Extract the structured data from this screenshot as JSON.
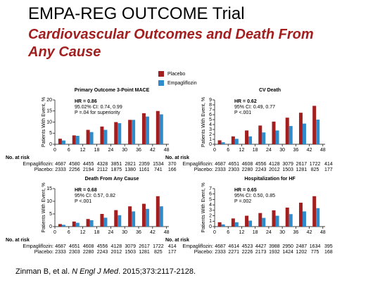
{
  "header": {
    "title": "EMPA-REG OUTCOME Trial",
    "subtitle": "Cardiovascular Outcomes and Death From Any Cause"
  },
  "legend": [
    {
      "name": "Placebo",
      "color": "#a31f1f"
    },
    {
      "name": "Empagliflozin",
      "color": "#2e8bcc"
    }
  ],
  "chart_data": [
    {
      "type": "bar",
      "title": "Primary Outcome 3-Point MACE",
      "y_label": "Patients With Event, %",
      "annotations": [
        "HR = 0.86",
        "95.02% CI: 0.74, 0.99",
        "P =.04 for superiority"
      ],
      "x": [
        3,
        9,
        15,
        21,
        27,
        33,
        39,
        45
      ],
      "xlim": [
        0,
        49
      ],
      "xticks": [
        0,
        6,
        12,
        18,
        24,
        30,
        36,
        42,
        48
      ],
      "ylim": [
        0,
        20
      ],
      "yticks": [
        0,
        5,
        10,
        15,
        20
      ],
      "series": [
        {
          "values": [
            2.5,
            4,
            6.5,
            8,
            10,
            11,
            14,
            15
          ]
        },
        {
          "values": [
            1.7,
            3.8,
            5.5,
            6.5,
            9.5,
            11,
            12.5,
            13.5
          ]
        }
      ],
      "at_risk": {
        "label": "No. at risk",
        "rows": [
          {
            "name": "Empagliflozin:",
            "values": [
              4687,
              4580,
              4455,
              4328,
              3851,
              2821,
              2359,
              1534,
              370
            ]
          },
          {
            "name": "Placebo:",
            "values": [
              2333,
              2256,
              2194,
              2112,
              1875,
              1380,
              1161,
              741,
              166
            ]
          }
        ]
      }
    },
    {
      "type": "bar",
      "title": "CV Death",
      "y_label": "Patients With Event, %",
      "annotations": [
        "HR = 0.62",
        "95% CI: 0.49, 0.77",
        "P <.001"
      ],
      "x": [
        3,
        9,
        15,
        21,
        27,
        33,
        39,
        45
      ],
      "xlim": [
        0,
        49
      ],
      "xticks": [
        0,
        6,
        12,
        18,
        24,
        30,
        36,
        42,
        48
      ],
      "ylim": [
        0,
        9
      ],
      "yticks": [
        0,
        1,
        2,
        3,
        4,
        5,
        6,
        7,
        8,
        9
      ],
      "series": [
        {
          "values": [
            0.8,
            1.6,
            2.8,
            3.8,
            4.6,
            5.4,
            6.4,
            7.8
          ]
        },
        {
          "values": [
            0.4,
            1.1,
            1.6,
            2.4,
            2.8,
            3.7,
            4.2,
            5
          ]
        }
      ],
      "at_risk": {
        "label": "No. at risk",
        "rows": [
          {
            "name": "Empagliflozin:",
            "values": [
              4687,
              4651,
              4608,
              4556,
              4128,
              3079,
              2617,
              1722,
              414
            ]
          },
          {
            "name": "Placebo:",
            "values": [
              2333,
              2303,
              2280,
              2243,
              2012,
              1503,
              1281,
              825,
              177
            ]
          }
        ]
      }
    },
    {
      "type": "bar",
      "title": "Death From Any Cause",
      "y_label": "Patients With Event, %",
      "annotations": [
        "HR = 0.68",
        "95% CI: 0.57, 0.82",
        "P <.001"
      ],
      "x": [
        3,
        9,
        15,
        21,
        27,
        33,
        39,
        45
      ],
      "xlim": [
        0,
        49
      ],
      "xticks": [
        0,
        6,
        12,
        18,
        24,
        30,
        36,
        42,
        48
      ],
      "ylim": [
        0,
        15
      ],
      "yticks": [
        0,
        5,
        10,
        15
      ],
      "series": [
        {
          "values": [
            1,
            2,
            3,
            5,
            6.5,
            8,
            9,
            12
          ]
        },
        {
          "values": [
            0.7,
            1.5,
            2.5,
            3.5,
            4.5,
            6,
            7,
            8
          ]
        }
      ],
      "at_risk": {
        "label": "No. at risk",
        "rows": [
          {
            "name": "Empagliflozin:",
            "values": [
              4687,
              4651,
              4608,
              4556,
              4128,
              3079,
              2617,
              1722,
              414
            ]
          },
          {
            "name": "Placebo:",
            "values": [
              2333,
              2303,
              2280,
              2243,
              2012,
              1503,
              1281,
              825,
              177
            ]
          }
        ]
      }
    },
    {
      "type": "bar",
      "title": "Hospitalization for HF",
      "y_label": "Patients With Event, %",
      "annotations": [
        "HR = 0.65",
        "95% CI: 0.50, 0.85",
        "P =.002"
      ],
      "x": [
        3,
        9,
        15,
        21,
        27,
        33,
        39,
        45
      ],
      "xlim": [
        0,
        49
      ],
      "xticks": [
        0,
        6,
        12,
        18,
        24,
        30,
        36,
        42,
        48
      ],
      "ylim": [
        0,
        7
      ],
      "yticks": [
        0,
        1,
        2,
        3,
        4,
        5,
        6,
        7
      ],
      "series": [
        {
          "values": [
            0.8,
            1.5,
            2,
            2.5,
            3,
            3.5,
            4.4,
            5.6
          ]
        },
        {
          "values": [
            0.4,
            0.8,
            1.1,
            1.6,
            2,
            2.3,
            2.8,
            3.4
          ]
        }
      ],
      "at_risk": {
        "label": "No. at risk",
        "rows": [
          {
            "name": "Empagliflozin:",
            "values": [
              4687,
              4614,
              4523,
              4427,
              3988,
              2950,
              2487,
              1634,
              395
            ]
          },
          {
            "name": "Placebo:",
            "values": [
              2333,
              2271,
              2226,
              2173,
              1932,
              1424,
              1202,
              775,
              168
            ]
          }
        ]
      }
    }
  ],
  "citation": [
    "Zinman B, et al. ",
    "N Engl J Med",
    ". 2015;373:2117-2128."
  ]
}
